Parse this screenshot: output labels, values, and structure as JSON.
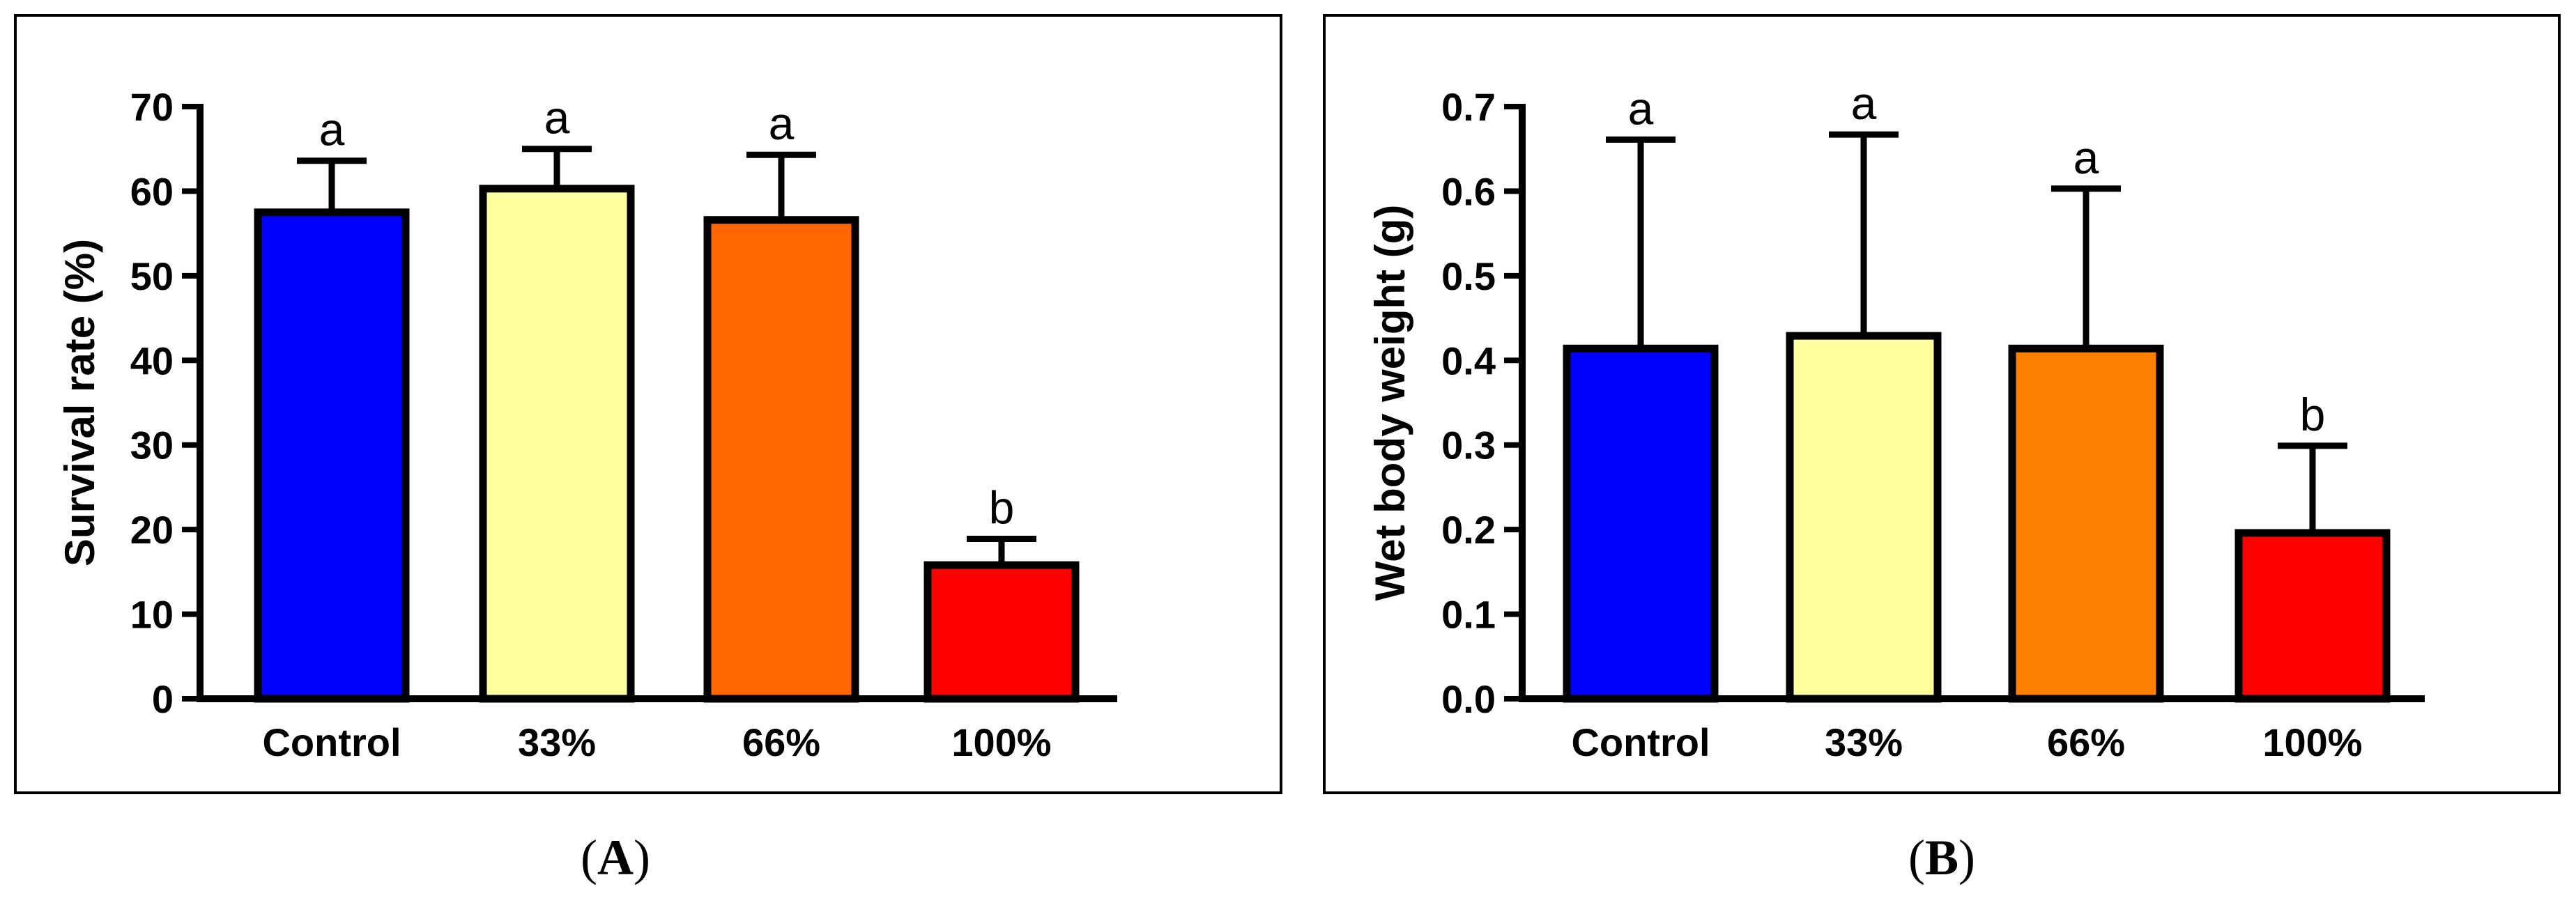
{
  "chart_data": [
    {
      "id": "A",
      "type": "bar",
      "panel_label": "A",
      "title": "",
      "xlabel": "",
      "ylabel": "Survival rate (%)",
      "ylim": [
        0,
        70
      ],
      "yticks": [
        0,
        10,
        20,
        30,
        40,
        50,
        60,
        70
      ],
      "ytick_labels": [
        "0",
        "10",
        "20",
        "30",
        "40",
        "50",
        "60",
        "70"
      ],
      "categories": [
        "Control",
        "33%",
        "66%",
        "100%"
      ],
      "values": [
        57.5,
        60.3,
        56.6,
        15.8
      ],
      "errors": [
        6.1,
        4.7,
        7.7,
        3.1
      ],
      "significance": [
        "a",
        "a",
        "a",
        "b"
      ],
      "colors": [
        "#0000FF",
        "#FFFFA0",
        "#FF6600",
        "#FF0000"
      ],
      "grid": false
    },
    {
      "id": "B",
      "type": "bar",
      "panel_label": "B",
      "title": "",
      "xlabel": "",
      "ylabel": "Wet body weight (g)",
      "ylim": [
        0,
        0.7
      ],
      "yticks": [
        0,
        0.1,
        0.2,
        0.3,
        0.4,
        0.5,
        0.6,
        0.7
      ],
      "ytick_labels": [
        "0.0",
        "0.1",
        "0.2",
        "0.3",
        "0.4",
        "0.5",
        "0.6",
        "0.7"
      ],
      "categories": [
        "Control",
        "33%",
        "66%",
        "100%"
      ],
      "values": [
        0.414,
        0.429,
        0.414,
        0.196
      ],
      "errors": [
        0.247,
        0.238,
        0.189,
        0.103
      ],
      "significance": [
        "a",
        "a",
        "a",
        "b"
      ],
      "colors": [
        "#0000FF",
        "#FFFFA0",
        "#FF8000",
        "#FF0000"
      ],
      "grid": false
    }
  ]
}
